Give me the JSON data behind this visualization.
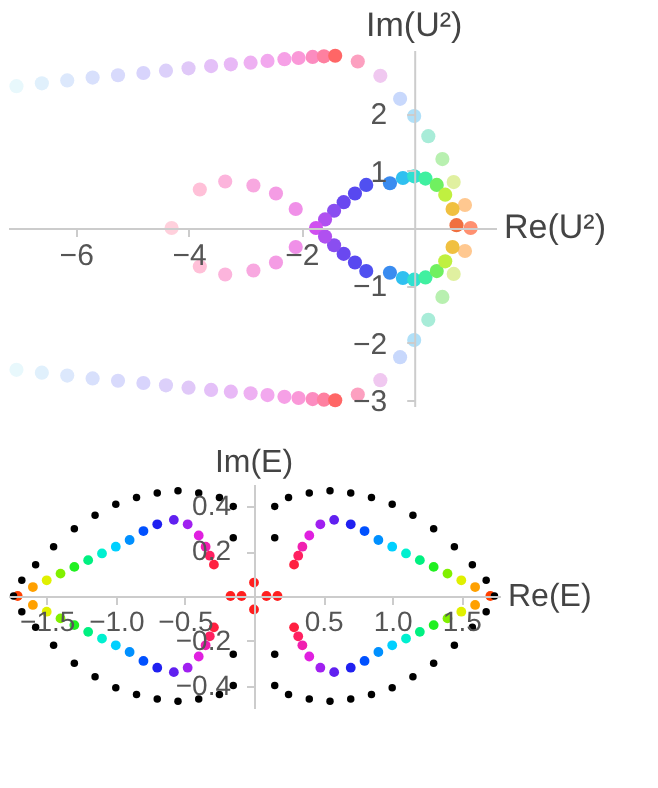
{
  "chart_data": [
    {
      "type": "scatter",
      "xlabel": "Re(U²)",
      "ylabel": "Im(U²)",
      "xlim": [
        -7.2,
        1.45
      ],
      "ylim": [
        -3.1,
        3.1
      ],
      "xticks": [
        -6,
        -4,
        -2
      ],
      "yticks": [
        -3,
        -2,
        -1,
        1,
        2
      ],
      "series": [
        {
          "x": [
            -7.05,
            -6.6,
            -6.15,
            -5.7,
            -5.25,
            -4.8,
            -4.4,
            -4.0,
            -3.6,
            -3.25,
            -2.9,
            -2.6,
            -2.3,
            -2.05,
            -1.8,
            -1.6,
            -1.4,
            -1.0,
            -0.6,
            -0.25,
            0.0,
            0.25,
            0.5,
            0.7,
            0.9,
            1.0
          ],
          "values": [
            2.47,
            2.52,
            2.57,
            2.62,
            2.66,
            2.7,
            2.74,
            2.78,
            2.82,
            2.85,
            2.88,
            2.91,
            2.94,
            2.96,
            2.98,
            2.99,
            3.0,
            2.9,
            2.65,
            2.25,
            1.95,
            1.6,
            1.2,
            0.8,
            0.4,
            0.0
          ],
          "colors": [
            "#e8f8fc",
            "#e0f0fc",
            "#dce8fc",
            "#d8e0fc",
            "#d8dafc",
            "#d8d4fc",
            "#dcd0fa",
            "#e0c8f8",
            "#e4c0f8",
            "#e8b8f6",
            "#eeb0f2",
            "#f2a8ee",
            "#f6a0e6",
            "#fa98d8",
            "#fc8cc0",
            "#fe80a0",
            "#ff6666",
            "#fca0c0",
            "#f0c8f0",
            "#c8d8fc",
            "#b0e0f8",
            "#a8ecd8",
            "#b8f0b0",
            "#e0f0a0",
            "#ffc890",
            "#ff9070"
          ]
        },
        {
          "x": [
            -7.05,
            -6.6,
            -6.15,
            -5.7,
            -5.25,
            -4.8,
            -4.4,
            -4.0,
            -3.6,
            -3.25,
            -2.9,
            -2.6,
            -2.3,
            -2.05,
            -1.8,
            -1.6,
            -1.4,
            -1.0,
            -0.6,
            -0.25,
            0.0,
            0.25,
            0.5,
            0.7,
            0.9
          ],
          "values": [
            -2.47,
            -2.52,
            -2.57,
            -2.62,
            -2.66,
            -2.7,
            -2.74,
            -2.78,
            -2.82,
            -2.85,
            -2.88,
            -2.91,
            -2.94,
            -2.96,
            -2.98,
            -2.99,
            -3.0,
            -2.9,
            -2.65,
            -2.25,
            -1.95,
            -1.6,
            -1.2,
            -0.8,
            -0.4
          ],
          "colors": [
            "#e8f8fc",
            "#e0f0fc",
            "#dce8fc",
            "#d8e0fc",
            "#d8dafc",
            "#d8d4fc",
            "#dcd0fa",
            "#e0c8f8",
            "#e4c0f8",
            "#e8b8f6",
            "#eeb0f2",
            "#f2a8ee",
            "#f6a0e6",
            "#fa98d8",
            "#fc8cc0",
            "#fe80a0",
            "#ff6666",
            "#fca0c0",
            "#f0c8f0",
            "#c8d8fc",
            "#b0e0f8",
            "#a8ecd8",
            "#b8f0b0",
            "#e0f0a0",
            "#ffc890"
          ]
        },
        {
          "x": [
            -0.43,
            -0.2,
            0.0,
            0.2,
            0.4,
            0.55,
            0.68,
            0.75,
            -0.43,
            -0.2,
            0.0,
            0.2,
            0.4,
            0.55,
            0.68
          ],
          "values": [
            0.78,
            0.87,
            0.9,
            0.86,
            0.75,
            0.58,
            0.33,
            0.05,
            -0.78,
            -0.87,
            -0.9,
            -0.86,
            -0.75,
            -0.58,
            -0.33
          ],
          "colors": [
            "#3a8cf0",
            "#30c0f0",
            "#30e0d0",
            "#40f0a0",
            "#70f060",
            "#c0f040",
            "#f0c040",
            "#f07040",
            "#3a8cf0",
            "#30c0f0",
            "#30e0d0",
            "#40f0a0",
            "#70f060",
            "#c0f040",
            "#f0c040"
          ]
        },
        {
          "x": [
            -0.85,
            -1.05,
            -1.25,
            -1.42,
            -1.58,
            -1.74,
            -0.85,
            -1.05,
            -1.25,
            -1.42,
            -1.58
          ],
          "values": [
            0.75,
            0.6,
            0.45,
            0.3,
            0.15,
            0.0,
            -0.75,
            -0.6,
            -0.45,
            -0.3,
            -0.15
          ],
          "colors": [
            "#5050f0",
            "#5848f0",
            "#6a48f0",
            "#8a4ef0",
            "#b050f0",
            "#d050f0",
            "#5050f0",
            "#5848f0",
            "#6a48f0",
            "#8a4ef0",
            "#b050f0"
          ]
        },
        {
          "x": [
            -2.1,
            -2.45,
            -2.85,
            -3.35,
            -3.8,
            -4.3,
            -2.1,
            -2.45,
            -2.85,
            -3.35,
            -3.8
          ],
          "values": [
            0.33,
            0.6,
            0.74,
            0.81,
            0.67,
            0.0,
            -0.33,
            -0.6,
            -0.74,
            -0.81,
            -0.67
          ],
          "colors": [
            "#f090e8",
            "#f49ce4",
            "#f8a8e0",
            "#fcb4dc",
            "#ffc0d8",
            "#ffd0dc",
            "#f090e8",
            "#f49ce4",
            "#f8a8e0",
            "#fcb4dc",
            "#ffc0d8"
          ]
        }
      ]
    },
    {
      "type": "scatter",
      "xlabel": "Re(E)",
      "ylabel": "Im(E)",
      "xlim": [
        -1.78,
        1.78
      ],
      "ylim": [
        -0.5,
        0.5
      ],
      "xticks": [
        -1.5,
        {
          "value": -1.0,
          "label": "−1.0"
        },
        -0.5,
        0.5,
        {
          "value": 1.0,
          "label": "1.0"
        },
        1.5
      ],
      "yticks": [
        -0.4,
        -0.2,
        0.2,
        0.4
      ],
      "series": [
        {
          "x": [
            1.71,
            1.6,
            1.5,
            1.4,
            1.3,
            1.2,
            1.1,
            1.0,
            0.9,
            0.8,
            0.7,
            0.58,
            0.48,
            0.4,
            0.35,
            0.32,
            0.29
          ],
          "values": [
            0.0,
            0.04,
            0.07,
            0.1,
            0.13,
            0.16,
            0.19,
            0.22,
            0.25,
            0.29,
            0.32,
            0.34,
            0.32,
            0.27,
            0.22,
            0.18,
            0.14
          ],
          "colors": [
            "#ff4000",
            "#ffa000",
            "#e0f000",
            "#80f000",
            "#20f020",
            "#00f080",
            "#00f0d0",
            "#00d0ff",
            "#0090ff",
            "#0050ff",
            "#2020f0",
            "#6020f0",
            "#a020f0",
            "#e020e0",
            "#f020b0",
            "#ff2060",
            "#ff2040"
          ]
        },
        {
          "x": [
            1.6,
            1.5,
            1.4,
            1.3,
            1.2,
            1.1,
            1.0,
            0.9,
            0.8,
            0.7,
            0.58,
            0.48,
            0.4,
            0.35,
            0.32,
            0.29
          ],
          "values": [
            -0.04,
            -0.07,
            -0.1,
            -0.13,
            -0.16,
            -0.19,
            -0.22,
            -0.25,
            -0.29,
            -0.32,
            -0.34,
            -0.32,
            -0.27,
            -0.22,
            -0.18,
            -0.14
          ],
          "colors": [
            "#ffa000",
            "#e0f000",
            "#80f000",
            "#20f020",
            "#00f080",
            "#00f0d0",
            "#00d0ff",
            "#0090ff",
            "#0050ff",
            "#2020f0",
            "#6020f0",
            "#a020f0",
            "#e020e0",
            "#f020b0",
            "#ff2060",
            "#ff2040"
          ]
        },
        {
          "x": [
            -1.71,
            -1.6,
            -1.5,
            -1.4,
            -1.3,
            -1.2,
            -1.1,
            -1.0,
            -0.9,
            -0.8,
            -0.7,
            -0.58,
            -0.48,
            -0.4,
            -0.35,
            -0.32,
            -0.29
          ],
          "values": [
            0.0,
            0.04,
            0.07,
            0.1,
            0.13,
            0.16,
            0.19,
            0.22,
            0.25,
            0.29,
            0.32,
            0.34,
            0.32,
            0.27,
            0.22,
            0.18,
            0.14
          ],
          "colors": [
            "#ff4000",
            "#ffa000",
            "#e0f000",
            "#80f000",
            "#20f020",
            "#00f080",
            "#00f0d0",
            "#00d0ff",
            "#0090ff",
            "#0050ff",
            "#2020f0",
            "#6020f0",
            "#a020f0",
            "#e020e0",
            "#f020b0",
            "#ff2060",
            "#ff2040"
          ]
        },
        {
          "x": [
            -1.6,
            -1.5,
            -1.4,
            -1.3,
            -1.2,
            -1.1,
            -1.0,
            -0.9,
            -0.8,
            -0.7,
            -0.58,
            -0.48,
            -0.4,
            -0.35,
            -0.32,
            -0.29
          ],
          "values": [
            -0.04,
            -0.07,
            -0.1,
            -0.13,
            -0.16,
            -0.19,
            -0.22,
            -0.25,
            -0.29,
            -0.32,
            -0.34,
            -0.32,
            -0.27,
            -0.22,
            -0.18,
            -0.14
          ],
          "colors": [
            "#ffa000",
            "#e0f000",
            "#80f000",
            "#20f020",
            "#00f080",
            "#00f0d0",
            "#00d0ff",
            "#0090ff",
            "#0050ff",
            "#2020f0",
            "#6020f0",
            "#a020f0",
            "#e020e0",
            "#f020b0",
            "#ff2060",
            "#ff2040"
          ]
        },
        {
          "x": [
            -0.17,
            -0.09,
            0.09,
            0.17,
            0.0,
            0.0
          ],
          "values": [
            0.0,
            0.0,
            0.0,
            0.0,
            0.06,
            -0.06
          ],
          "color": "#ff2020"
        },
        {
          "x": [
            0.15,
            0.15,
            0.25,
            0.4,
            0.55,
            0.7,
            0.85,
            1.0,
            1.15,
            1.3,
            1.45,
            1.58,
            1.68,
            1.74,
            -0.15,
            -0.15,
            -0.25,
            -0.4,
            -0.55,
            -0.7,
            -0.85,
            -1.0,
            -1.15,
            -1.3,
            -1.45,
            -1.58,
            -1.68,
            -1.74,
            0.15,
            0.15,
            0.25,
            0.4,
            0.55,
            0.7,
            0.85,
            1.0,
            1.15,
            1.3,
            1.45,
            1.58,
            1.68,
            -0.15,
            -0.15,
            -0.25,
            -0.4,
            -0.55,
            -0.7,
            -0.85,
            -1.0,
            -1.15,
            -1.3,
            -1.45,
            -1.58,
            -1.68
          ],
          "values": [
            0.26,
            0.4,
            0.44,
            0.46,
            0.47,
            0.46,
            0.44,
            0.41,
            0.36,
            0.3,
            0.22,
            0.14,
            0.07,
            0.0,
            0.26,
            0.4,
            0.44,
            0.46,
            0.47,
            0.46,
            0.44,
            0.41,
            0.36,
            0.3,
            0.22,
            0.14,
            0.07,
            0.0,
            -0.26,
            -0.4,
            -0.44,
            -0.46,
            -0.47,
            -0.46,
            -0.44,
            -0.41,
            -0.36,
            -0.3,
            -0.22,
            -0.14,
            -0.07,
            -0.26,
            -0.4,
            -0.44,
            -0.46,
            -0.47,
            -0.46,
            -0.44,
            -0.41,
            -0.36,
            -0.3,
            -0.22,
            -0.14,
            -0.07
          ],
          "color": "#000000"
        }
      ]
    }
  ]
}
